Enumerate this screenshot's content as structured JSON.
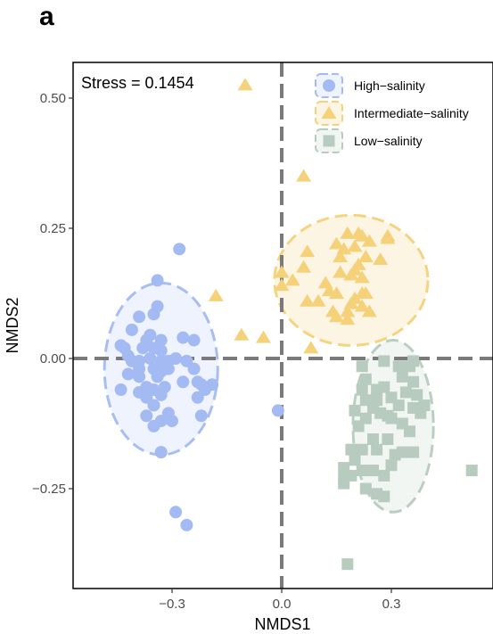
{
  "panel_label": "a",
  "chart_data": {
    "type": "scatter",
    "title": "",
    "xlabel": "NMDS1",
    "ylabel": "NMDS2",
    "xlim": [
      -0.55,
      0.55
    ],
    "ylim": [
      -0.44,
      0.57
    ],
    "xticks": [
      -0.3,
      0.0,
      0.3
    ],
    "xtick_labels": [
      "−0.3",
      "0.0",
      "0.3"
    ],
    "yticks": [
      -0.25,
      0.0,
      0.25,
      0.5
    ],
    "ytick_labels": [
      "−0.25",
      "0.00",
      "0.25",
      "0.50"
    ],
    "grid": false,
    "legend_position": "top-right",
    "annotation": "Stress = 0.1454",
    "reference_lines": {
      "x": 0.0,
      "y": 0.0
    },
    "series": [
      {
        "name": "High−salinity",
        "marker": "circle",
        "color": "#a4baf2",
        "ellipse": {
          "cx": -0.33,
          "cy": -0.02,
          "rx": 0.155,
          "ry": 0.165,
          "rotation_deg": 0
        },
        "points": [
          [
            -0.28,
            0.21
          ],
          [
            -0.34,
            0.15
          ],
          [
            -0.34,
            0.1
          ],
          [
            -0.35,
            0.085
          ],
          [
            -0.39,
            0.08
          ],
          [
            -0.41,
            0.055
          ],
          [
            -0.36,
            0.045
          ],
          [
            -0.37,
            0.035
          ],
          [
            -0.33,
            0.035
          ],
          [
            -0.27,
            0.04
          ],
          [
            -0.24,
            0.035
          ],
          [
            -0.44,
            0.025
          ],
          [
            -0.43,
            0.02
          ],
          [
            -0.38,
            0.02
          ],
          [
            -0.35,
            0.02
          ],
          [
            -0.33,
            0.015
          ],
          [
            -0.42,
            0.005
          ],
          [
            -0.36,
            0.0
          ],
          [
            -0.29,
            0.0
          ],
          [
            -0.41,
            -0.005
          ],
          [
            -0.39,
            -0.005
          ],
          [
            -0.33,
            -0.005
          ],
          [
            -0.31,
            -0.005
          ],
          [
            -0.26,
            -0.005
          ],
          [
            -0.39,
            -0.02
          ],
          [
            -0.35,
            -0.02
          ],
          [
            -0.33,
            -0.025
          ],
          [
            -0.31,
            -0.02
          ],
          [
            -0.24,
            -0.02
          ],
          [
            -0.42,
            -0.03
          ],
          [
            -0.39,
            -0.035
          ],
          [
            -0.34,
            -0.035
          ],
          [
            -0.27,
            -0.045
          ],
          [
            -0.23,
            -0.045
          ],
          [
            -0.22,
            -0.05
          ],
          [
            -0.19,
            -0.05
          ],
          [
            -0.37,
            -0.055
          ],
          [
            -0.32,
            -0.055
          ],
          [
            -0.35,
            -0.06
          ],
          [
            -0.21,
            -0.06
          ],
          [
            -0.44,
            -0.06
          ],
          [
            -0.39,
            -0.065
          ],
          [
            -0.33,
            -0.07
          ],
          [
            -0.37,
            -0.075
          ],
          [
            -0.23,
            -0.075
          ],
          [
            -0.35,
            -0.09
          ],
          [
            -0.31,
            -0.105
          ],
          [
            -0.37,
            -0.11
          ],
          [
            -0.22,
            -0.11
          ],
          [
            -0.33,
            -0.12
          ],
          [
            -0.35,
            -0.13
          ],
          [
            -0.3,
            -0.12
          ],
          [
            -0.33,
            -0.18
          ],
          [
            -0.29,
            -0.295
          ],
          [
            -0.26,
            -0.32
          ],
          [
            -0.01,
            -0.1
          ]
        ]
      },
      {
        "name": "Intermediate−salinity",
        "marker": "triangle",
        "color": "#f5d27a",
        "ellipse": {
          "cx": 0.19,
          "cy": 0.15,
          "rx": 0.21,
          "ry": 0.125,
          "rotation_deg": 0
        },
        "points": [
          [
            -0.1,
            0.525
          ],
          [
            0.06,
            0.35
          ],
          [
            0.06,
            0.175
          ],
          [
            0.15,
            0.22
          ],
          [
            0.18,
            0.24
          ],
          [
            0.21,
            0.24
          ],
          [
            0.22,
            0.235
          ],
          [
            0.29,
            0.235
          ],
          [
            0.29,
            0.23
          ],
          [
            0.24,
            0.225
          ],
          [
            0.2,
            0.215
          ],
          [
            0.17,
            0.21
          ],
          [
            0.07,
            0.205
          ],
          [
            0.16,
            0.195
          ],
          [
            0.23,
            0.195
          ],
          [
            0.27,
            0.19
          ],
          [
            0.21,
            0.18
          ],
          [
            0.2,
            0.17
          ],
          [
            0.16,
            0.165
          ],
          [
            0.19,
            0.16
          ],
          [
            0.22,
            0.155
          ],
          [
            0.0,
            0.165
          ],
          [
            0.03,
            0.15
          ],
          [
            0.0,
            0.14
          ],
          [
            0.12,
            0.145
          ],
          [
            0.13,
            0.13
          ],
          [
            0.15,
            0.125
          ],
          [
            0.22,
            0.125
          ],
          [
            0.2,
            0.115
          ],
          [
            0.1,
            0.11
          ],
          [
            0.19,
            0.105
          ],
          [
            0.23,
            0.125
          ],
          [
            0.07,
            0.11
          ],
          [
            0.15,
            0.08
          ],
          [
            0.18,
            0.075
          ],
          [
            0.14,
            0.09
          ],
          [
            -0.18,
            0.12
          ],
          [
            -0.11,
            0.045
          ],
          [
            -0.05,
            0.04
          ],
          [
            0.08,
            0.02
          ],
          [
            0.22,
            0.1
          ],
          [
            0.24,
            0.09
          ],
          [
            0.18,
            0.09
          ]
        ]
      },
      {
        "name": "Low−salinity",
        "marker": "square",
        "color": "#b7ccbe",
        "ellipse": {
          "cx": 0.305,
          "cy": -0.13,
          "rx": 0.11,
          "ry": 0.165,
          "rotation_deg": 0
        },
        "points": [
          [
            0.32,
            -0.015
          ],
          [
            0.36,
            -0.005
          ],
          [
            0.28,
            -0.005
          ],
          [
            0.22,
            -0.015
          ],
          [
            0.35,
            -0.015
          ],
          [
            0.23,
            -0.04
          ],
          [
            0.33,
            -0.035
          ],
          [
            0.36,
            -0.045
          ],
          [
            0.26,
            -0.06
          ],
          [
            0.28,
            -0.055
          ],
          [
            0.34,
            -0.065
          ],
          [
            0.37,
            -0.07
          ],
          [
            0.22,
            -0.06
          ],
          [
            0.3,
            -0.075
          ],
          [
            0.23,
            -0.08
          ],
          [
            0.26,
            -0.08
          ],
          [
            0.39,
            -0.09
          ],
          [
            0.32,
            -0.09
          ],
          [
            0.25,
            -0.095
          ],
          [
            0.36,
            -0.095
          ],
          [
            0.27,
            -0.105
          ],
          [
            0.38,
            -0.105
          ],
          [
            0.29,
            -0.11
          ],
          [
            0.3,
            -0.115
          ],
          [
            0.2,
            -0.1
          ],
          [
            0.23,
            -0.115
          ],
          [
            0.33,
            -0.125
          ],
          [
            0.21,
            -0.13
          ],
          [
            0.35,
            -0.14
          ],
          [
            0.25,
            -0.155
          ],
          [
            0.29,
            -0.155
          ],
          [
            0.22,
            -0.175
          ],
          [
            0.19,
            -0.175
          ],
          [
            0.26,
            -0.175
          ],
          [
            0.36,
            -0.18
          ],
          [
            0.33,
            -0.18
          ],
          [
            0.31,
            -0.185
          ],
          [
            0.2,
            -0.195
          ],
          [
            0.3,
            -0.205
          ],
          [
            0.25,
            -0.215
          ],
          [
            0.22,
            -0.215
          ],
          [
            0.17,
            -0.21
          ],
          [
            0.28,
            -0.225
          ],
          [
            0.17,
            -0.23
          ],
          [
            0.19,
            -0.225
          ],
          [
            0.17,
            -0.24
          ],
          [
            0.23,
            -0.25
          ],
          [
            0.26,
            -0.26
          ],
          [
            0.28,
            -0.265
          ],
          [
            0.52,
            -0.215
          ],
          [
            0.18,
            -0.395
          ]
        ]
      }
    ]
  },
  "colors": {
    "high_fill": "#a4baf2",
    "high_ellipse_fill": "#eef3fd",
    "high_ellipse_stroke": "#a4baf2",
    "inter_fill": "#f5d27a",
    "inter_ellipse_fill": "#fdf5e3",
    "inter_ellipse_stroke": "#f5d27a",
    "low_fill": "#b7ccbe",
    "low_ellipse_fill": "#f1f6f2",
    "low_ellipse_stroke": "#b7ccbe",
    "ref_line": "#7a7a7a",
    "frame": "#000000"
  }
}
